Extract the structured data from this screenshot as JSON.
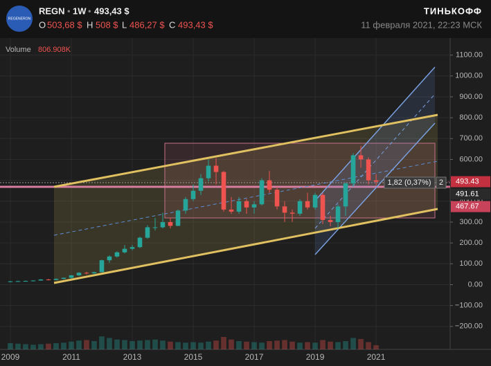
{
  "header": {
    "logo": "REGENERON",
    "symbol": "REGN",
    "interval": "1W",
    "price": "493,43 $",
    "open_label": "O",
    "open": "503,68 $",
    "high_label": "H",
    "high": "508 $",
    "low_label": "L",
    "low": "486,27 $",
    "close_label": "C",
    "close": "493,43 $",
    "brand": "ТИНЬКОФФ",
    "datetime": "11 февраля 2021, 22:23 МСК"
  },
  "chart_data": {
    "type": "candlestick",
    "volume_title": "Volume",
    "volume_last": "806.908K",
    "x": [
      2009,
      2009.25,
      2009.5,
      2009.75,
      2010,
      2010.25,
      2010.5,
      2010.75,
      2011,
      2011.25,
      2011.5,
      2011.75,
      2012,
      2012.25,
      2012.5,
      2012.75,
      2013,
      2013.25,
      2013.5,
      2013.75,
      2014,
      2014.25,
      2014.5,
      2014.75,
      2015,
      2015.25,
      2015.5,
      2015.75,
      2016,
      2016.25,
      2016.5,
      2016.75,
      2017,
      2017.25,
      2017.5,
      2017.75,
      2018,
      2018.25,
      2018.5,
      2018.75,
      2019,
      2019.25,
      2019.5,
      2019.75,
      2020,
      2020.25,
      2020.5,
      2020.75,
      2021
    ],
    "open": [
      15,
      16,
      17,
      18,
      20,
      25,
      23,
      28,
      33,
      45,
      57,
      55,
      60,
      117,
      135,
      155,
      172,
      180,
      225,
      275,
      275,
      300,
      282,
      355,
      410,
      450,
      510,
      570,
      540,
      360,
      350,
      400,
      370,
      385,
      500,
      455,
      375,
      345,
      340,
      400,
      370,
      430,
      310,
      300,
      375,
      485,
      620,
      600,
      500
    ],
    "high": [
      18,
      19,
      20,
      21,
      26,
      28,
      30,
      34,
      46,
      60,
      62,
      62,
      120,
      140,
      160,
      190,
      190,
      230,
      285,
      320,
      345,
      320,
      360,
      420,
      480,
      530,
      600,
      605,
      545,
      420,
      420,
      410,
      400,
      510,
      545,
      470,
      400,
      360,
      410,
      440,
      440,
      440,
      330,
      385,
      490,
      630,
      665,
      610,
      530
    ],
    "low": [
      12,
      14,
      15,
      16,
      19,
      21,
      21,
      26,
      30,
      42,
      50,
      48,
      60,
      105,
      130,
      150,
      165,
      175,
      220,
      260,
      270,
      270,
      280,
      340,
      400,
      430,
      495,
      480,
      350,
      340,
      340,
      340,
      340,
      380,
      440,
      360,
      300,
      300,
      330,
      360,
      360,
      290,
      280,
      270,
      330,
      470,
      560,
      480,
      475
    ],
    "close": [
      16,
      17,
      18,
      20,
      25,
      23,
      28,
      33,
      45,
      57,
      55,
      60,
      117,
      135,
      155,
      172,
      180,
      225,
      275,
      275,
      300,
      282,
      355,
      410,
      450,
      510,
      570,
      540,
      360,
      350,
      400,
      370,
      385,
      500,
      455,
      375,
      345,
      340,
      400,
      370,
      430,
      310,
      300,
      375,
      485,
      620,
      600,
      500,
      493.43
    ],
    "volume": [
      1200,
      1100,
      1000,
      900,
      1000,
      1100,
      1200,
      1300,
      1500,
      1700,
      1800,
      1600,
      2500,
      2200,
      1900,
      1800,
      1600,
      1700,
      1800,
      1900,
      1700,
      1500,
      1400,
      1300,
      1400,
      1300,
      1500,
      1700,
      2400,
      1900,
      1600,
      1500,
      1400,
      1300,
      1600,
      1700,
      1800,
      1500,
      1300,
      1400,
      1300,
      1800,
      1500,
      1400,
      1600,
      2200,
      2000,
      1400,
      807
    ],
    "vlim": [
      0,
      8000
    ],
    "up_color": "#26a69a",
    "down_color": "#ef5350",
    "xlim": [
      2008.66,
      2023.43
    ],
    "xticks": [
      2009,
      2011,
      2013,
      2015,
      2017,
      2019,
      2021
    ],
    "ylim": [
      -310,
      1165
    ],
    "yticks": [
      {
        "value": 1100,
        "label": "1100.00"
      },
      {
        "value": 1000,
        "label": "1000.00"
      },
      {
        "value": 900,
        "label": "900.00"
      },
      {
        "value": 800,
        "label": "800.00"
      },
      {
        "value": 700,
        "label": "700.00"
      },
      {
        "value": 600,
        "label": "600.00"
      },
      {
        "value": 500,
        "label": "500.00"
      },
      {
        "value": 400,
        "label": "400.00"
      },
      {
        "value": 300,
        "label": "300.00"
      },
      {
        "value": 200,
        "label": "200.00"
      },
      {
        "value": 100,
        "label": "100.00"
      },
      {
        "value": 0,
        "label": "0.00"
      },
      {
        "value": -100,
        "label": "−100.00"
      },
      {
        "value": -200,
        "label": "−200.00"
      }
    ],
    "grid": true,
    "price_tags": [
      {
        "value": 493.43,
        "label": "493.43",
        "color": "#c3303f"
      },
      {
        "value": 491.61,
        "label": "491.61",
        "color": "#2a2a2a"
      },
      {
        "value": 467.67,
        "label": "467.67",
        "color": "#c8425a"
      }
    ],
    "measure_label": "1,82 (0,37%)",
    "measure_count": "2"
  }
}
